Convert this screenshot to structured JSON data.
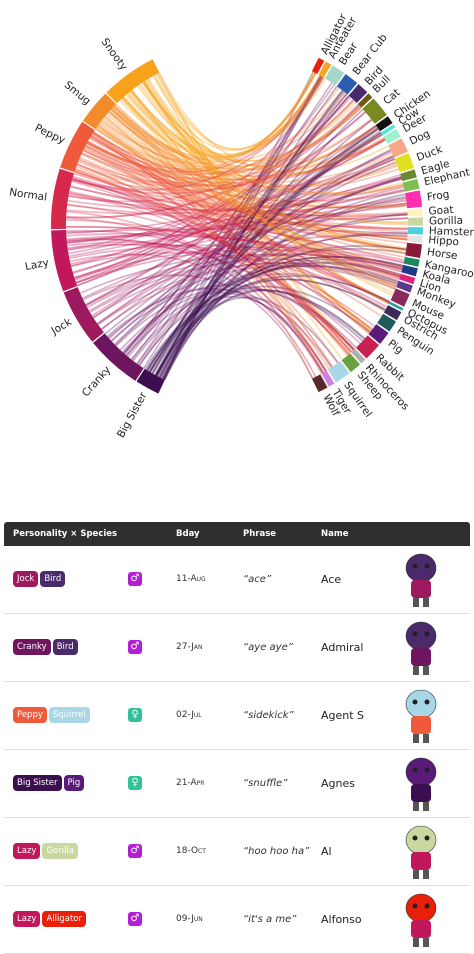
{
  "chart_data": {
    "type": "chord",
    "personalities": {
      "labels": [
        "Big Sister",
        "Cranky",
        "Jock",
        "Lazy",
        "Normal",
        "Peppy",
        "Smug",
        "Snooty"
      ],
      "values": [
        24,
        55,
        55,
        60,
        59,
        49,
        34,
        55
      ],
      "colors": [
        "#3b0f4f",
        "#6e1560",
        "#9e1a5e",
        "#c0185a",
        "#d6294c",
        "#ee5a3a",
        "#f38b2b",
        "#f7a21a"
      ]
    },
    "species": {
      "labels": [
        "Alligator",
        "Anteater",
        "Bear",
        "Bear Cub",
        "Bird",
        "Bull",
        "Cat",
        "Chicken",
        "Cow",
        "Deer",
        "Dog",
        "Duck",
        "Eagle",
        "Elephant",
        "Frog",
        "Goat",
        "Gorilla",
        "Hamster",
        "Hippo",
        "Horse",
        "Kangaroo",
        "Koala",
        "Lion",
        "Monkey",
        "Mouse",
        "Octopus",
        "Ostrich",
        "Penguin",
        "Pig",
        "Rabbit",
        "Rhinoceros",
        "Sheep",
        "Squirrel",
        "Tiger",
        "Wolf"
      ],
      "values": [
        7,
        7,
        15,
        16,
        13,
        6,
        23,
        9,
        4,
        10,
        16,
        17,
        9,
        11,
        18,
        8,
        9,
        8,
        7,
        15,
        8,
        9,
        7,
        8,
        15,
        3,
        10,
        13,
        15,
        20,
        6,
        13,
        18,
        7,
        11
      ],
      "colors": [
        "#e8200a",
        "#f5a623",
        "#a5d6c8",
        "#2a5db0",
        "#4b2a6b",
        "#6b5a10",
        "#7a8a20",
        "#111111",
        "#4ee8d8",
        "#9ff0d0",
        "#f7a78a",
        "#e0e020",
        "#6a8a30",
        "#80c050",
        "#ff2fb0",
        "#fff1b8",
        "#c8d8a0",
        "#4fd0e0",
        "#e4e4e4",
        "#8a1a3a",
        "#1a8a5a",
        "#1a3a8a",
        "#e0207a",
        "#5a3a8a",
        "#8a2a5a",
        "#20a0a0",
        "#3a2a5a",
        "#205a5a",
        "#5a1a7a",
        "#c82050",
        "#b0b0b0",
        "#6aa040",
        "#a8d8e8",
        "#d080e0",
        "#5a2a2a"
      ]
    }
  },
  "table": {
    "headers": [
      "Personality × Species",
      "Bday",
      "Phrase",
      "Name"
    ],
    "rows": [
      {
        "personality": "Jock",
        "species": "Bird",
        "gender": "♂",
        "birthday": "11-Aug",
        "phrase": "“ace”",
        "name": "Ace"
      },
      {
        "personality": "Cranky",
        "species": "Bird",
        "gender": "♂",
        "birthday": "27-Jan",
        "phrase": "“aye aye”",
        "name": "Admiral"
      },
      {
        "personality": "Peppy",
        "species": "Squirrel",
        "gender": "♀",
        "birthday": "02-Jul",
        "phrase": "“sidekick”",
        "name": "Agent S"
      },
      {
        "personality": "Big Sister",
        "species": "Pig",
        "gender": "♀",
        "birthday": "21-Apr",
        "phrase": "“snuffle”",
        "name": "Agnes"
      },
      {
        "personality": "Lazy",
        "species": "Gorilla",
        "gender": "♂",
        "birthday": "18-Oct",
        "phrase": "“hoo hoo ha”",
        "name": "Al"
      },
      {
        "personality": "Lazy",
        "species": "Alligator",
        "gender": "♂",
        "birthday": "09-Jun",
        "phrase": "“it's a me”",
        "name": "Alfonso"
      }
    ]
  }
}
